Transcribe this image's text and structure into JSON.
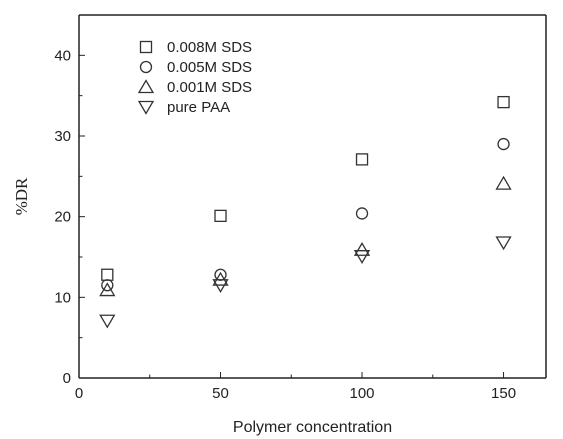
{
  "chart_data": {
    "type": "scatter",
    "title": "",
    "xlabel": "Polymer concentration",
    "ylabel": "%DR",
    "xlim": [
      0,
      165
    ],
    "ylim": [
      0,
      45
    ],
    "xticks": [
      0,
      50,
      100,
      150
    ],
    "yticks": [
      0,
      10,
      20,
      30,
      40
    ],
    "grid": false,
    "legend_position": "top-left",
    "series": [
      {
        "name": "0.008M SDS",
        "marker": "square",
        "x": [
          10,
          50,
          100,
          150
        ],
        "y": [
          12.8,
          20.1,
          27.1,
          34.2
        ]
      },
      {
        "name": "0.005M SDS",
        "marker": "circle",
        "x": [
          10,
          50,
          100,
          150
        ],
        "y": [
          11.5,
          12.8,
          20.4,
          29.0
        ]
      },
      {
        "name": "0.001M SDS",
        "marker": "triangle-up",
        "x": [
          10,
          50,
          100,
          150
        ],
        "y": [
          10.9,
          12.2,
          15.9,
          24.1
        ]
      },
      {
        "name": "pure PAA",
        "marker": "triangle-down",
        "x": [
          10,
          50,
          100,
          150
        ],
        "y": [
          7.1,
          11.5,
          15.1,
          16.8
        ]
      }
    ]
  }
}
